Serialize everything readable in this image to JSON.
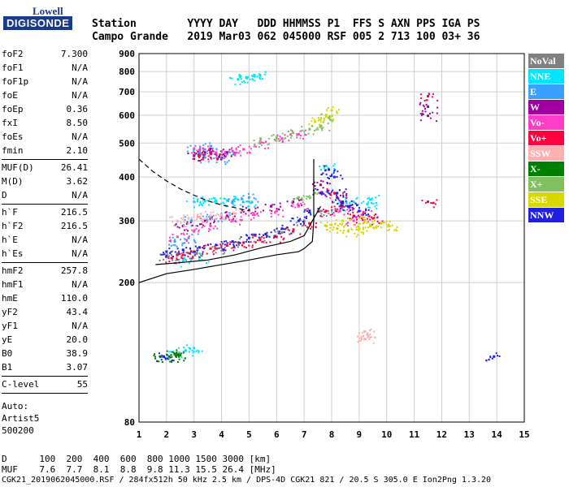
{
  "logo": {
    "top": "Lowell",
    "bottom": "DIGISONDE"
  },
  "header": {
    "labels": "Station        YYYY DAY   DDD HHMMSS P1  FFS S AXN PPS IGA PS",
    "values": "Campo Grande   2019 Mar03 062 045000 RSF 005 2 713 100 03+ 36"
  },
  "params": {
    "group1": [
      {
        "label": "foF2",
        "value": "7.300"
      },
      {
        "label": "foF1",
        "value": "N/A"
      },
      {
        "label": "foF1p",
        "value": "N/A"
      },
      {
        "label": "foE",
        "value": "N/A"
      },
      {
        "label": "foEp",
        "value": "0.36"
      },
      {
        "label": "fxI",
        "value": "8.50"
      },
      {
        "label": "foEs",
        "value": "N/A"
      },
      {
        "label": "fmin",
        "value": "2.10"
      }
    ],
    "group2": [
      {
        "label": "MUF(D)",
        "value": "26.41"
      },
      {
        "label": "M(D)",
        "value": "3.62"
      },
      {
        "label": "D",
        "value": "N/A"
      }
    ],
    "group3": [
      {
        "label": "h`F",
        "value": "216.5"
      },
      {
        "label": "h`F2",
        "value": "216.5"
      },
      {
        "label": "h`E",
        "value": "N/A"
      },
      {
        "label": "h`Es",
        "value": "N/A"
      }
    ],
    "group4": [
      {
        "label": "hmF2",
        "value": "257.8"
      },
      {
        "label": "hmF1",
        "value": "N/A"
      },
      {
        "label": "hmE",
        "value": "110.0"
      },
      {
        "label": "yF2",
        "value": "43.4"
      },
      {
        "label": "yF1",
        "value": "N/A"
      },
      {
        "label": "yE",
        "value": "20.0"
      },
      {
        "label": "B0",
        "value": "38.9"
      },
      {
        "label": "B1",
        "value": "3.07"
      }
    ],
    "group5": [
      {
        "label": "C-level",
        "value": "55"
      }
    ],
    "auto": [
      "Auto:",
      "Artist5",
      "500200"
    ]
  },
  "legend": [
    {
      "label": "NoVal",
      "color": "#808080"
    },
    {
      "label": "NNE",
      "color": "#00e5ff"
    },
    {
      "label": "E",
      "color": "#3aa0ff"
    },
    {
      "label": "W",
      "color": "#a000a0"
    },
    {
      "label": "Vo-",
      "color": "#ff3cc8"
    },
    {
      "label": "Vo+",
      "color": "#ff0040"
    },
    {
      "label": "SSW",
      "color": "#ffb0b0"
    },
    {
      "label": "X-",
      "color": "#008000"
    },
    {
      "label": "X+",
      "color": "#80c060"
    },
    {
      "label": "SSE",
      "color": "#d8d800"
    },
    {
      "label": "NNW",
      "color": "#2020e0"
    }
  ],
  "chart_data": {
    "type": "scatter",
    "title": "",
    "xlabel": "",
    "ylabel": "",
    "xlim": [
      1,
      15
    ],
    "x_ticks": [
      1,
      2,
      3,
      4,
      5,
      6,
      7,
      8,
      9,
      10,
      11,
      12,
      13,
      14,
      15
    ],
    "y_scale": "log",
    "ylim": [
      80,
      900
    ],
    "y_ticks": [
      80,
      200,
      300,
      400,
      500,
      600,
      700,
      800,
      900
    ],
    "grid": true,
    "legend_placement": "right",
    "clusters": [
      {
        "color_index": 0,
        "points": [
          [
            2.0,
            238
          ],
          [
            2.4,
            240
          ],
          [
            3.1,
            242
          ],
          [
            3.8,
            250
          ],
          [
            4.6,
            260
          ],
          [
            5.4,
            268
          ],
          [
            6.2,
            278
          ],
          [
            7.0,
            300
          ],
          [
            7.6,
            320
          ]
        ]
      },
      {
        "color_index": 1,
        "points": [
          [
            3.0,
            340
          ],
          [
            3.4,
            342
          ],
          [
            3.8,
            340
          ],
          [
            4.2,
            343
          ],
          [
            4.6,
            345
          ],
          [
            5.0,
            340
          ],
          [
            2.6,
            230
          ],
          [
            3.2,
            236
          ],
          [
            4.6,
            760
          ],
          [
            4.9,
            770
          ],
          [
            5.2,
            775
          ],
          [
            5.4,
            780
          ],
          [
            7.8,
            430
          ],
          [
            8.3,
            330
          ],
          [
            8.8,
            340
          ],
          [
            9.3,
            335
          ],
          [
            9.4,
            345
          ],
          [
            2.3,
            125
          ],
          [
            2.7,
            128
          ],
          [
            3.0,
            130
          ]
        ]
      },
      {
        "color_index": 2,
        "points": [
          [
            3.0,
            480
          ],
          [
            3.2,
            470
          ],
          [
            3.4,
            455
          ],
          [
            3.6,
            490
          ],
          [
            4.0,
            450
          ],
          [
            4.2,
            465
          ],
          [
            2.9,
            300
          ],
          [
            3.6,
            305
          ],
          [
            4.0,
            310
          ],
          [
            4.4,
            340
          ],
          [
            5.0,
            350
          ],
          [
            2.3,
            262
          ],
          [
            2.8,
            268
          ]
        ]
      },
      {
        "color_index": 3,
        "points": [
          [
            2.6,
            290
          ],
          [
            3.4,
            300
          ],
          [
            4.2,
            310
          ],
          [
            5.0,
            322
          ],
          [
            5.8,
            330
          ],
          [
            6.6,
            340
          ],
          [
            7.6,
            380
          ],
          [
            8.2,
            350
          ],
          [
            8.6,
            330
          ],
          [
            3.0,
            460
          ],
          [
            3.4,
            470
          ],
          [
            3.8,
            465
          ],
          [
            4.2,
            470
          ],
          [
            11.5,
            635
          ],
          [
            11.5,
            598
          ]
        ]
      },
      {
        "color_index": 4,
        "points": [
          [
            2.4,
            270
          ],
          [
            3.0,
            280
          ],
          [
            3.6,
            290
          ],
          [
            4.4,
            300
          ],
          [
            5.2,
            312
          ],
          [
            6.0,
            320
          ],
          [
            6.8,
            330
          ],
          [
            7.6,
            360
          ],
          [
            8.3,
            320
          ],
          [
            8.8,
            300
          ],
          [
            9.1,
            312
          ],
          [
            3.2,
            478
          ],
          [
            3.8,
            470
          ],
          [
            4.4,
            474
          ],
          [
            4.8,
            480
          ],
          [
            5.4,
            500
          ],
          [
            6.2,
            515
          ],
          [
            6.8,
            530
          ]
        ]
      },
      {
        "color_index": 5,
        "points": [
          [
            2.2,
            235
          ],
          [
            2.6,
            240
          ],
          [
            3.0,
            245
          ],
          [
            3.6,
            250
          ],
          [
            4.2,
            255
          ],
          [
            4.8,
            260
          ],
          [
            5.4,
            265
          ],
          [
            6.0,
            270
          ],
          [
            6.6,
            280
          ],
          [
            7.2,
            295
          ],
          [
            7.8,
            320
          ],
          [
            8.1,
            360
          ],
          [
            8.4,
            330
          ],
          [
            8.8,
            310
          ],
          [
            9.2,
            300
          ],
          [
            9.5,
            305
          ],
          [
            11.5,
            680
          ],
          [
            11.5,
            340
          ],
          [
            3.2,
            460
          ],
          [
            3.6,
            465
          ]
        ]
      },
      {
        "color_index": 6,
        "points": [
          [
            2.4,
            300
          ],
          [
            2.8,
            305
          ],
          [
            3.2,
            308
          ],
          [
            3.6,
            310
          ],
          [
            4.0,
            312
          ],
          [
            4.5,
            315
          ],
          [
            9.2,
            145
          ],
          [
            9.2,
            138
          ],
          [
            9.3,
            142
          ]
        ]
      },
      {
        "color_index": 7,
        "points": [
          [
            1.8,
            123
          ],
          [
            2.1,
            123
          ],
          [
            2.3,
            125
          ],
          [
            2.5,
            124
          ]
        ]
      },
      {
        "color_index": 8,
        "points": [
          [
            5.4,
            505
          ],
          [
            6.0,
            520
          ],
          [
            6.6,
            535
          ],
          [
            7.2,
            548
          ],
          [
            7.6,
            560
          ],
          [
            7.9,
            590
          ],
          [
            6.8,
            350
          ],
          [
            7.4,
            360
          ]
        ]
      },
      {
        "color_index": 9,
        "points": [
          [
            7.8,
            290
          ],
          [
            8.2,
            285
          ],
          [
            8.6,
            280
          ],
          [
            9.0,
            285
          ],
          [
            9.4,
            290
          ],
          [
            9.8,
            295
          ],
          [
            10.1,
            290
          ],
          [
            8.4,
            300
          ],
          [
            9.2,
            300
          ],
          [
            7.4,
            575
          ],
          [
            7.8,
            595
          ],
          [
            8.0,
            620
          ]
        ]
      },
      {
        "color_index": 10,
        "points": [
          [
            2.0,
            245
          ],
          [
            2.6,
            248
          ],
          [
            3.2,
            252
          ],
          [
            3.8,
            256
          ],
          [
            4.4,
            262
          ],
          [
            5.0,
            268
          ],
          [
            5.6,
            275
          ],
          [
            6.2,
            285
          ],
          [
            6.8,
            300
          ],
          [
            7.2,
            320
          ],
          [
            7.6,
            360
          ],
          [
            7.9,
            420
          ],
          [
            8.1,
            400
          ],
          [
            8.2,
            360
          ],
          [
            8.4,
            340
          ],
          [
            8.6,
            330
          ],
          [
            9.0,
            320
          ],
          [
            1.9,
            123
          ],
          [
            13.9,
            123
          ]
        ]
      }
    ],
    "reference_lines": {
      "dashed": [
        [
          1.0,
          450
        ],
        [
          1.5,
          415
        ],
        [
          2.0,
          390
        ],
        [
          2.5,
          370
        ],
        [
          3.0,
          355
        ],
        [
          3.5,
          342
        ],
        [
          4.0,
          333
        ],
        [
          4.5,
          327
        ],
        [
          5.0,
          320
        ]
      ],
      "trace": [
        [
          1.0,
          200
        ],
        [
          2.0,
          212
        ],
        [
          3.0,
          218
        ],
        [
          4.0,
          225
        ],
        [
          5.0,
          232
        ],
        [
          6.0,
          240
        ],
        [
          6.8,
          245
        ],
        [
          7.0,
          250
        ],
        [
          7.3,
          262
        ],
        [
          7.35,
          300
        ],
        [
          7.35,
          450
        ]
      ],
      "trace2": [
        [
          1.6,
          225
        ],
        [
          2.5,
          228
        ],
        [
          3.5,
          232
        ],
        [
          4.5,
          240
        ],
        [
          5.5,
          252
        ],
        [
          6.5,
          262
        ],
        [
          7.0,
          272
        ],
        [
          7.3,
          300
        ],
        [
          7.6,
          330
        ]
      ]
    }
  },
  "footer": {
    "line1": "D      100  200  400  600  800 1000 1500 3000 [km]",
    "line2": "MUF    7.6  7.7  8.1  8.8  9.8 11.3 15.5 26.4 [MHz]",
    "line3": "CGK21_2019062045000.RSF / 284fx512h 50 kHz 2.5 km / DPS-4D CGK21 821 / 20.5 S 305.0 E Ion2Png 1.3.20"
  }
}
